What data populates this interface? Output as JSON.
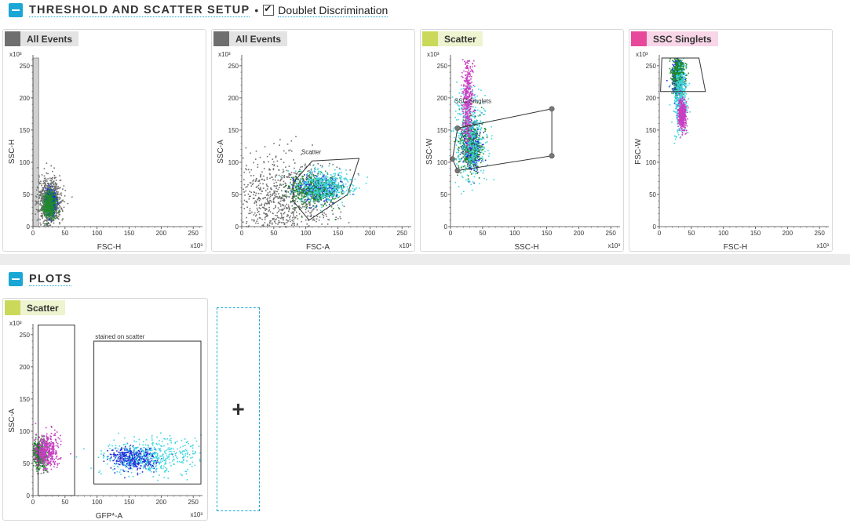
{
  "sections": {
    "setup": {
      "title": "THRESHOLD AND SCATTER SETUP",
      "separator": "•",
      "doublet_label": "Doublet Discrimination",
      "doublet_checked": true
    },
    "plots": {
      "title": "PLOTS"
    }
  },
  "add_plot_label": "+",
  "multiplier": "x10³",
  "axis_ticks": [
    "0",
    "50",
    "100",
    "150",
    "200",
    "250"
  ],
  "plots": [
    {
      "population": "All Events",
      "pop_color": "#6f6f6f",
      "pop_bg": "#e3e3e3",
      "xlabel": "FSC-H",
      "ylabel": "SSC-H",
      "gate_label": ""
    },
    {
      "population": "All Events",
      "pop_color": "#6f6f6f",
      "pop_bg": "#e3e3e3",
      "xlabel": "FSC-A",
      "ylabel": "SSC-A",
      "gate_label": "Scatter"
    },
    {
      "population": "Scatter",
      "pop_color": "#cbd95a",
      "pop_bg": "#eef3d0",
      "xlabel": "SSC-H",
      "ylabel": "SSC-W",
      "gate_label": "SSC Singlets"
    },
    {
      "population": "SSC Singlets",
      "pop_color": "#e8489a",
      "pop_bg": "#f8d6e8",
      "xlabel": "FSC-H",
      "ylabel": "FSC-W",
      "gate_label": ""
    },
    {
      "population": "Scatter",
      "pop_color": "#cbd95a",
      "pop_bg": "#eef3d0",
      "xlabel": "GFP*-A",
      "ylabel": "SSC-A",
      "gate_label": "stained on scatter"
    }
  ],
  "chart_data": [
    {
      "type": "scatter",
      "x_axis": "FSC-H",
      "y_axis": "SSC-H",
      "xlim": [
        0,
        262
      ],
      "ylim": [
        0,
        262
      ],
      "clusters": [
        {
          "color": "#6f6f6f",
          "x_center": 25,
          "y_center": 40,
          "x_spread": 9,
          "y_spread": 18
        },
        {
          "color": "#1d2fd8",
          "x_center": 27,
          "y_center": 38,
          "x_spread": 4,
          "y_spread": 9
        },
        {
          "color": "#1f8a2c",
          "x_center": 25,
          "y_center": 35,
          "x_spread": 5,
          "y_spread": 10
        }
      ],
      "gate": {
        "type": "threshold",
        "x_max": 9
      }
    },
    {
      "type": "scatter",
      "x_axis": "FSC-A",
      "y_axis": "SSC-A",
      "xlim": [
        0,
        262
      ],
      "ylim": [
        0,
        262
      ],
      "clusters": [
        {
          "color": "#6f6f6f",
          "x_center": 60,
          "y_center": 40,
          "x_spread": 40,
          "y_spread": 35
        },
        {
          "color": "#1d2fd8",
          "x_center": 118,
          "y_center": 60,
          "x_spread": 16,
          "y_spread": 9
        },
        {
          "color": "#1f8a2c",
          "x_center": 110,
          "y_center": 58,
          "x_spread": 20,
          "y_spread": 12
        },
        {
          "color": "#3fd6e0",
          "x_center": 130,
          "y_center": 64,
          "x_spread": 22,
          "y_spread": 12
        }
      ],
      "gate": {
        "type": "polygon",
        "label": "Scatter",
        "points": [
          [
            80,
            68
          ],
          [
            110,
            102
          ],
          [
            183,
            106
          ],
          [
            165,
            50
          ],
          [
            105,
            10
          ],
          [
            80,
            40
          ]
        ]
      }
    },
    {
      "type": "scatter",
      "x_axis": "SSC-H",
      "y_axis": "SSC-W",
      "xlim": [
        0,
        262
      ],
      "ylim": [
        0,
        262
      ],
      "clusters": [
        {
          "color": "#1d2fd8",
          "x_center": 32,
          "y_center": 125,
          "x_spread": 7,
          "y_spread": 18
        },
        {
          "color": "#1f8a2c",
          "x_center": 30,
          "y_center": 128,
          "x_spread": 9,
          "y_spread": 20
        },
        {
          "color": "#3fd6e0",
          "x_center": 30,
          "y_center": 140,
          "x_spread": 12,
          "y_spread": 35
        },
        {
          "color": "#c83fc2",
          "x_center": 26,
          "y_center": 200,
          "x_spread": 4,
          "y_spread": 35
        }
      ],
      "gate": {
        "type": "polygon",
        "label": "SSC Singlets",
        "points": [
          [
            11,
            153
          ],
          [
            158,
            183
          ],
          [
            158,
            110
          ],
          [
            11,
            87
          ],
          [
            3,
            105
          ]
        ]
      }
    },
    {
      "type": "scatter",
      "x_axis": "FSC-H",
      "y_axis": "FSC-W",
      "xlim": [
        0,
        262
      ],
      "ylim": [
        0,
        262
      ],
      "clusters": [
        {
          "color": "#1d2fd8",
          "x_center": 28,
          "y_center": 235,
          "x_spread": 4,
          "y_spread": 18
        },
        {
          "color": "#1f8a2c",
          "x_center": 28,
          "y_center": 240,
          "x_spread": 5,
          "y_spread": 15
        },
        {
          "color": "#3fd6e0",
          "x_center": 32,
          "y_center": 200,
          "x_spread": 5,
          "y_spread": 25
        },
        {
          "color": "#c83fc2",
          "x_center": 35,
          "y_center": 175,
          "x_spread": 3,
          "y_spread": 12
        }
      ],
      "gate": {
        "type": "polygon",
        "points": [
          [
            2,
            210
          ],
          [
            72,
            210
          ],
          [
            62,
            262
          ],
          [
            4,
            262
          ]
        ]
      }
    },
    {
      "type": "scatter",
      "x_axis": "GFP*-A",
      "y_axis": "SSC-A",
      "xlim": [
        0,
        262
      ],
      "ylim": [
        0,
        262
      ],
      "clusters": [
        {
          "color": "#1d2fd8",
          "x_center": 155,
          "y_center": 58,
          "x_spread": 18,
          "y_spread": 9
        },
        {
          "color": "#3fd6e0",
          "x_center": 190,
          "y_center": 62,
          "x_spread": 40,
          "y_spread": 14
        },
        {
          "color": "#1f8a2c",
          "x_center": 10,
          "y_center": 65,
          "x_spread": 6,
          "y_spread": 12
        },
        {
          "color": "#c83fc2",
          "x_center": 20,
          "y_center": 70,
          "x_spread": 10,
          "y_spread": 14
        }
      ],
      "gate": {
        "type": "rectangles",
        "label": "stained on scatter",
        "rects": [
          {
            "x": [
              8,
              65
            ],
            "y": [
              0,
              265
            ]
          },
          {
            "x": [
              95,
              262
            ],
            "y": [
              18,
              240
            ]
          }
        ]
      }
    }
  ]
}
